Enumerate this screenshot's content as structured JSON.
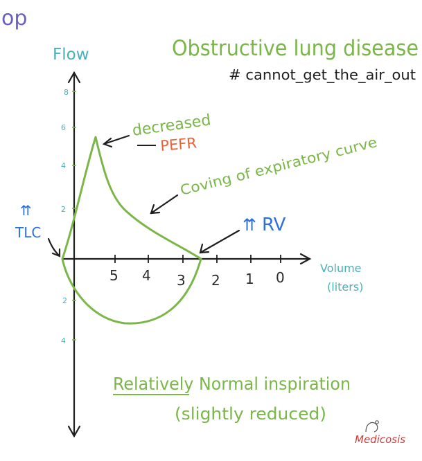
{
  "colors": {
    "green": "#7ab648",
    "teal": "#48b0b8",
    "blue": "#2f6fd8",
    "orange": "#e8643a",
    "black": "#1e1e1e",
    "purple": "#6a5fc4",
    "red": "#d63a3a"
  },
  "corner_fragment": "op",
  "title": "Obstructive lung disease",
  "hashtag": "# cannot_get_the_air_out",
  "flow_label": "Flow",
  "volume_label": "Volume",
  "volume_unit": "(liters)",
  "flow_ticks_up": [
    "8",
    "6",
    "4",
    "2"
  ],
  "flow_ticks_down": [
    "2",
    "4"
  ],
  "volume_ticks": [
    "5",
    "4",
    "3",
    "2",
    "1",
    "0"
  ],
  "annotations": {
    "decreased": "decreased",
    "pefr": "PEFR",
    "coving": "Coving of expiratory curve",
    "rv_arrows": "⇈",
    "rv": "RV",
    "tlc_arrows": "⇈",
    "tlc": "TLC",
    "inspiration_line1": "Relatively Normal inspiration",
    "inspiration_line2": "(slightly reduced)"
  },
  "brand": "Medicosis",
  "brand_icon": "stethoscope-icon"
}
